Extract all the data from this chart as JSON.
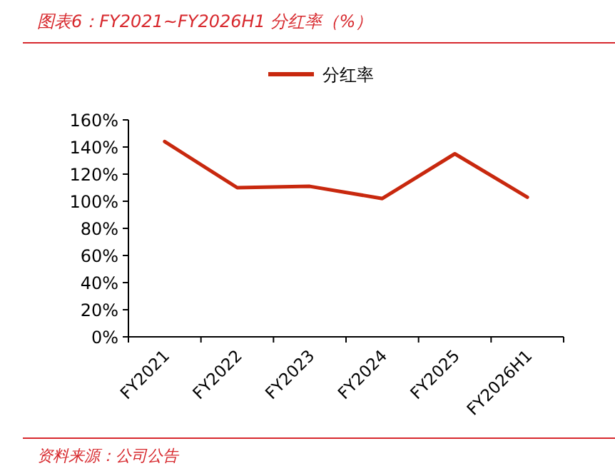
{
  "chart_data": {
    "type": "line",
    "title": "图表6：FY2021~FY2026H1 分红率（%）",
    "categories": [
      "FY2021",
      "FY2022",
      "FY2023",
      "FY2024",
      "FY2025",
      "FY2026H1"
    ],
    "series": [
      {
        "name": "分红率",
        "color": "#c8280e",
        "values": [
          144,
          110,
          111,
          102,
          135,
          103
        ]
      }
    ],
    "ylim": [
      0,
      160
    ],
    "yticks": [
      {
        "value": 0,
        "label": "0%"
      },
      {
        "value": 20,
        "label": "20%"
      },
      {
        "value": 40,
        "label": "40%"
      },
      {
        "value": 60,
        "label": "60%"
      },
      {
        "value": 80,
        "label": "80%"
      },
      {
        "value": 100,
        "label": "100%"
      },
      {
        "value": 120,
        "label": "120%"
      },
      {
        "value": 140,
        "label": "140%"
      },
      {
        "value": 160,
        "label": "160%"
      }
    ],
    "legend": "top",
    "grid": false,
    "marker": "none",
    "line_style": "solid",
    "annotations": [
      "资料来源：公司公告"
    ]
  }
}
